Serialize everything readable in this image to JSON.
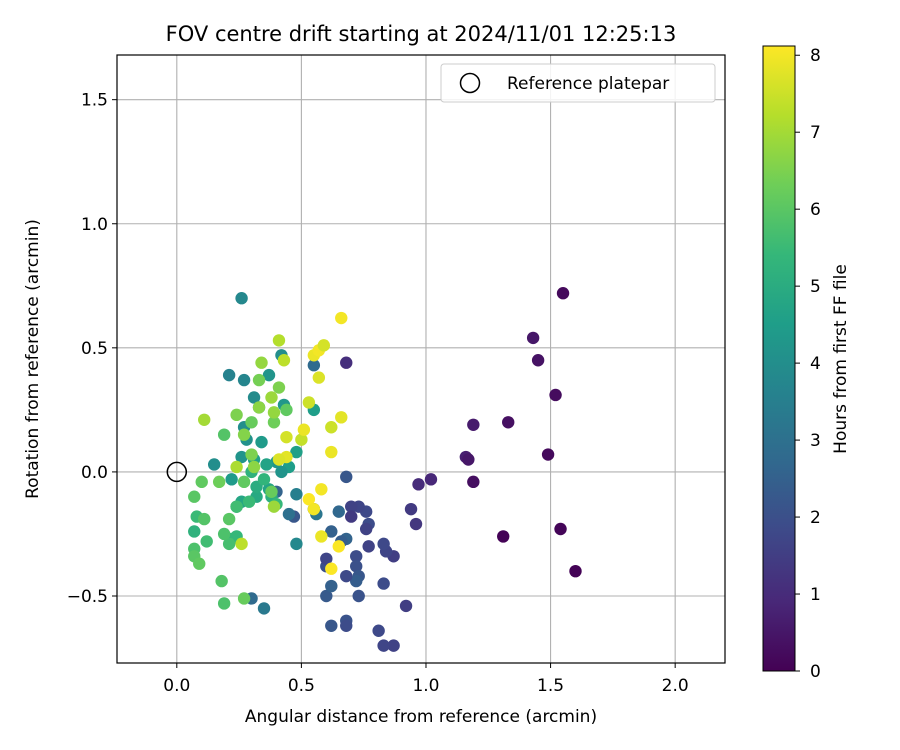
{
  "chart_data": {
    "type": "scatter",
    "title": "FOV centre drift starting at 2024/11/01 12:25:13",
    "xlabel": "Angular distance from reference (arcmin)",
    "ylabel": "Rotation from reference (arcmin)",
    "xlim": [
      -0.24,
      2.2
    ],
    "ylim": [
      -0.77,
      1.68
    ],
    "xticks": [
      0.0,
      0.5,
      1.0,
      1.5,
      2.0
    ],
    "xtick_labels": [
      "0.0",
      "0.5",
      "1.0",
      "1.5",
      "2.0"
    ],
    "yticks": [
      -0.5,
      0.0,
      0.5,
      1.0,
      1.5
    ],
    "ytick_labels": [
      "−0.5",
      "0.0",
      "0.5",
      "1.0",
      "1.5"
    ],
    "grid": true,
    "legend": {
      "position": "top-right",
      "label": "Reference platepar"
    },
    "reference_point": {
      "x": 0.0,
      "y": 0.0,
      "marker": "open-circle"
    },
    "colorbar": {
      "label": "Hours from first FF file",
      "min": 0,
      "max": 8.12,
      "ticks": [
        0,
        1,
        2,
        3,
        4,
        5,
        6,
        7,
        8
      ],
      "tick_labels": [
        "0",
        "1",
        "2",
        "3",
        "4",
        "5",
        "6",
        "7",
        "8"
      ],
      "colormap": "viridis"
    },
    "points": [
      {
        "x": 1.55,
        "y": 0.72,
        "c": 0.2
      },
      {
        "x": 1.6,
        "y": -0.4,
        "c": 0.05
      },
      {
        "x": 1.54,
        "y": -0.23,
        "c": 0.1
      },
      {
        "x": 1.31,
        "y": -0.26,
        "c": 0.05
      },
      {
        "x": 1.49,
        "y": 0.07,
        "c": 0.2
      },
      {
        "x": 1.52,
        "y": 0.31,
        "c": 0.25
      },
      {
        "x": 1.43,
        "y": 0.54,
        "c": 0.5
      },
      {
        "x": 1.45,
        "y": 0.45,
        "c": 0.4
      },
      {
        "x": 1.33,
        "y": 0.2,
        "c": 0.35
      },
      {
        "x": 1.19,
        "y": 0.19,
        "c": 0.6
      },
      {
        "x": 1.16,
        "y": 0.06,
        "c": 0.7
      },
      {
        "x": 1.17,
        "y": 0.05,
        "c": 0.5
      },
      {
        "x": 1.19,
        "y": -0.04,
        "c": 0.3
      },
      {
        "x": 1.02,
        "y": -0.03,
        "c": 0.9
      },
      {
        "x": 0.97,
        "y": -0.05,
        "c": 1.0
      },
      {
        "x": 0.94,
        "y": -0.15,
        "c": 1.4
      },
      {
        "x": 0.96,
        "y": -0.21,
        "c": 1.3
      },
      {
        "x": 0.92,
        "y": -0.54,
        "c": 1.5
      },
      {
        "x": 0.87,
        "y": -0.7,
        "c": 1.6
      },
      {
        "x": 0.83,
        "y": -0.7,
        "c": 1.7
      },
      {
        "x": 0.81,
        "y": -0.64,
        "c": 1.8
      },
      {
        "x": 0.83,
        "y": -0.45,
        "c": 1.9
      },
      {
        "x": 0.87,
        "y": -0.34,
        "c": 1.5
      },
      {
        "x": 0.84,
        "y": -0.32,
        "c": 1.7
      },
      {
        "x": 0.83,
        "y": -0.29,
        "c": 1.8
      },
      {
        "x": 0.77,
        "y": -0.3,
        "c": 1.6
      },
      {
        "x": 0.77,
        "y": -0.21,
        "c": 1.9
      },
      {
        "x": 0.76,
        "y": -0.23,
        "c": 1.6
      },
      {
        "x": 0.76,
        "y": -0.16,
        "c": 1.8
      },
      {
        "x": 0.73,
        "y": -0.14,
        "c": 1.7
      },
      {
        "x": 0.7,
        "y": -0.14,
        "c": 1.6
      },
      {
        "x": 0.7,
        "y": -0.18,
        "c": 1.4
      },
      {
        "x": 0.72,
        "y": -0.34,
        "c": 1.9
      },
      {
        "x": 0.72,
        "y": -0.38,
        "c": 2.0
      },
      {
        "x": 0.73,
        "y": -0.42,
        "c": 2.2
      },
      {
        "x": 0.72,
        "y": -0.44,
        "c": 2.4
      },
      {
        "x": 0.73,
        "y": -0.5,
        "c": 2.1
      },
      {
        "x": 0.68,
        "y": -0.42,
        "c": 1.8
      },
      {
        "x": 0.68,
        "y": -0.6,
        "c": 2.1
      },
      {
        "x": 0.68,
        "y": -0.62,
        "c": 1.9
      },
      {
        "x": 0.62,
        "y": -0.62,
        "c": 2.2
      },
      {
        "x": 0.6,
        "y": -0.5,
        "c": 2.3
      },
      {
        "x": 0.62,
        "y": -0.46,
        "c": 2.5
      },
      {
        "x": 0.6,
        "y": -0.38,
        "c": 2.0
      },
      {
        "x": 0.6,
        "y": -0.35,
        "c": 1.7
      },
      {
        "x": 0.62,
        "y": -0.24,
        "c": 2.5
      },
      {
        "x": 0.68,
        "y": -0.27,
        "c": 2.6
      },
      {
        "x": 0.66,
        "y": -0.28,
        "c": 2.4
      },
      {
        "x": 0.65,
        "y": -0.16,
        "c": 2.7
      },
      {
        "x": 0.68,
        "y": -0.02,
        "c": 2.2
      },
      {
        "x": 0.68,
        "y": 0.44,
        "c": 1.1
      },
      {
        "x": 0.55,
        "y": 0.43,
        "c": 2.8
      },
      {
        "x": 0.55,
        "y": -0.15,
        "c": 2.0
      },
      {
        "x": 0.47,
        "y": -0.18,
        "c": 2.2
      },
      {
        "x": 0.45,
        "y": -0.17,
        "c": 3.0
      },
      {
        "x": 0.48,
        "y": -0.29,
        "c": 3.8
      },
      {
        "x": 0.56,
        "y": -0.17,
        "c": 3.2
      },
      {
        "x": 0.48,
        "y": -0.09,
        "c": 3.5
      },
      {
        "x": 0.4,
        "y": -0.08,
        "c": 2.6
      },
      {
        "x": 0.3,
        "y": -0.51,
        "c": 2.8
      },
      {
        "x": 0.35,
        "y": -0.55,
        "c": 3.3
      },
      {
        "x": 0.26,
        "y": 0.7,
        "c": 3.8
      },
      {
        "x": 0.21,
        "y": 0.39,
        "c": 3.6
      },
      {
        "x": 0.27,
        "y": 0.37,
        "c": 3.7
      },
      {
        "x": 0.37,
        "y": 0.39,
        "c": 4.2
      },
      {
        "x": 0.42,
        "y": 0.47,
        "c": 4.0
      },
      {
        "x": 0.55,
        "y": 0.25,
        "c": 4.5
      },
      {
        "x": 0.43,
        "y": 0.27,
        "c": 4.3
      },
      {
        "x": 0.31,
        "y": 0.3,
        "c": 3.9
      },
      {
        "x": 0.33,
        "y": 0.26,
        "c": 3.8
      },
      {
        "x": 0.27,
        "y": 0.18,
        "c": 4.0
      },
      {
        "x": 0.28,
        "y": 0.13,
        "c": 4.1
      },
      {
        "x": 0.34,
        "y": 0.12,
        "c": 4.4
      },
      {
        "x": 0.48,
        "y": 0.08,
        "c": 4.6
      },
      {
        "x": 0.45,
        "y": 0.02,
        "c": 4.5
      },
      {
        "x": 0.42,
        "y": 0.0,
        "c": 4.2
      },
      {
        "x": 0.4,
        "y": 0.04,
        "c": 4.3
      },
      {
        "x": 0.36,
        "y": 0.03,
        "c": 4.7
      },
      {
        "x": 0.31,
        "y": 0.05,
        "c": 4.6
      },
      {
        "x": 0.26,
        "y": 0.06,
        "c": 4.2
      },
      {
        "x": 0.22,
        "y": -0.03,
        "c": 4.4
      },
      {
        "x": 0.15,
        "y": 0.03,
        "c": 4.0
      },
      {
        "x": 0.26,
        "y": -0.12,
        "c": 4.8
      },
      {
        "x": 0.24,
        "y": -0.14,
        "c": 5.0
      },
      {
        "x": 0.32,
        "y": -0.1,
        "c": 4.9
      },
      {
        "x": 0.37,
        "y": -0.07,
        "c": 4.7
      },
      {
        "x": 0.32,
        "y": -0.06,
        "c": 5.0
      },
      {
        "x": 0.38,
        "y": -0.1,
        "c": 5.1
      },
      {
        "x": 0.3,
        "y": 0.0,
        "c": 5.2
      },
      {
        "x": 0.35,
        "y": -0.03,
        "c": 5.3
      },
      {
        "x": 0.4,
        "y": -0.13,
        "c": 5.4
      },
      {
        "x": 0.29,
        "y": -0.12,
        "c": 5.5
      },
      {
        "x": 0.24,
        "y": -0.14,
        "c": 5.6
      },
      {
        "x": 0.22,
        "y": -0.27,
        "c": 5.3
      },
      {
        "x": 0.24,
        "y": -0.26,
        "c": 5.4
      },
      {
        "x": 0.21,
        "y": -0.29,
        "c": 5.7
      },
      {
        "x": 0.19,
        "y": -0.25,
        "c": 5.8
      },
      {
        "x": 0.12,
        "y": -0.28,
        "c": 5.6
      },
      {
        "x": 0.08,
        "y": -0.18,
        "c": 5.5
      },
      {
        "x": 0.11,
        "y": -0.19,
        "c": 5.9
      },
      {
        "x": 0.07,
        "y": -0.24,
        "c": 5.2
      },
      {
        "x": 0.07,
        "y": -0.31,
        "c": 5.8
      },
      {
        "x": 0.07,
        "y": -0.34,
        "c": 6.0
      },
      {
        "x": 0.09,
        "y": -0.37,
        "c": 6.1
      },
      {
        "x": 0.18,
        "y": -0.44,
        "c": 5.9
      },
      {
        "x": 0.19,
        "y": -0.53,
        "c": 5.8
      },
      {
        "x": 0.27,
        "y": -0.51,
        "c": 6.2
      },
      {
        "x": 0.07,
        "y": -0.1,
        "c": 6.0
      },
      {
        "x": 0.1,
        "y": -0.04,
        "c": 6.1
      },
      {
        "x": 0.17,
        "y": -0.04,
        "c": 6.3
      },
      {
        "x": 0.21,
        "y": -0.19,
        "c": 6.0
      },
      {
        "x": 0.19,
        "y": 0.15,
        "c": 5.9
      },
      {
        "x": 0.24,
        "y": 0.23,
        "c": 6.5
      },
      {
        "x": 0.27,
        "y": 0.15,
        "c": 6.6
      },
      {
        "x": 0.3,
        "y": 0.2,
        "c": 6.2
      },
      {
        "x": 0.33,
        "y": 0.26,
        "c": 6.7
      },
      {
        "x": 0.39,
        "y": 0.2,
        "c": 6.3
      },
      {
        "x": 0.39,
        "y": 0.24,
        "c": 6.8
      },
      {
        "x": 0.44,
        "y": 0.25,
        "c": 6.1
      },
      {
        "x": 0.41,
        "y": 0.34,
        "c": 6.5
      },
      {
        "x": 0.38,
        "y": 0.3,
        "c": 6.9
      },
      {
        "x": 0.33,
        "y": 0.37,
        "c": 6.4
      },
      {
        "x": 0.34,
        "y": 0.44,
        "c": 6.8
      },
      {
        "x": 0.41,
        "y": 0.53,
        "c": 7.2
      },
      {
        "x": 0.43,
        "y": 0.45,
        "c": 7.3
      },
      {
        "x": 0.11,
        "y": 0.21,
        "c": 7.0
      },
      {
        "x": 0.24,
        "y": 0.02,
        "c": 7.1
      },
      {
        "x": 0.3,
        "y": 0.07,
        "c": 6.5
      },
      {
        "x": 0.31,
        "y": 0.02,
        "c": 6.7
      },
      {
        "x": 0.39,
        "y": -0.14,
        "c": 6.9
      },
      {
        "x": 0.38,
        "y": -0.08,
        "c": 6.2
      },
      {
        "x": 0.27,
        "y": -0.04,
        "c": 6.1
      },
      {
        "x": 0.26,
        "y": -0.29,
        "c": 7.3
      },
      {
        "x": 0.44,
        "y": 0.14,
        "c": 7.6
      },
      {
        "x": 0.44,
        "y": 0.06,
        "c": 7.8
      },
      {
        "x": 0.41,
        "y": 0.05,
        "c": 7.7
      },
      {
        "x": 0.5,
        "y": 0.13,
        "c": 7.4
      },
      {
        "x": 0.51,
        "y": 0.17,
        "c": 7.9
      },
      {
        "x": 0.53,
        "y": 0.28,
        "c": 7.5
      },
      {
        "x": 0.57,
        "y": 0.38,
        "c": 7.7
      },
      {
        "x": 0.55,
        "y": 0.47,
        "c": 7.9
      },
      {
        "x": 0.57,
        "y": 0.49,
        "c": 8.0
      },
      {
        "x": 0.59,
        "y": 0.51,
        "c": 7.6
      },
      {
        "x": 0.66,
        "y": 0.62,
        "c": 8.0
      },
      {
        "x": 0.66,
        "y": 0.22,
        "c": 7.8
      },
      {
        "x": 0.62,
        "y": 0.18,
        "c": 7.5
      },
      {
        "x": 0.62,
        "y": 0.08,
        "c": 7.9
      },
      {
        "x": 0.58,
        "y": -0.07,
        "c": 8.0
      },
      {
        "x": 0.53,
        "y": -0.11,
        "c": 8.1
      },
      {
        "x": 0.55,
        "y": -0.15,
        "c": 8.0
      },
      {
        "x": 0.58,
        "y": -0.26,
        "c": 7.9
      },
      {
        "x": 0.65,
        "y": -0.3,
        "c": 8.1
      },
      {
        "x": 0.62,
        "y": -0.39,
        "c": 8.1
      }
    ]
  },
  "palette": {
    "viridis": [
      "#440154",
      "#482878",
      "#3e4989",
      "#31688e",
      "#26828e",
      "#1f9e89",
      "#35b779",
      "#6ece58",
      "#b5de2b",
      "#fde725"
    ],
    "grid": "#b0b0b0",
    "axis": "#000000",
    "legend_border": "#cccccc"
  }
}
